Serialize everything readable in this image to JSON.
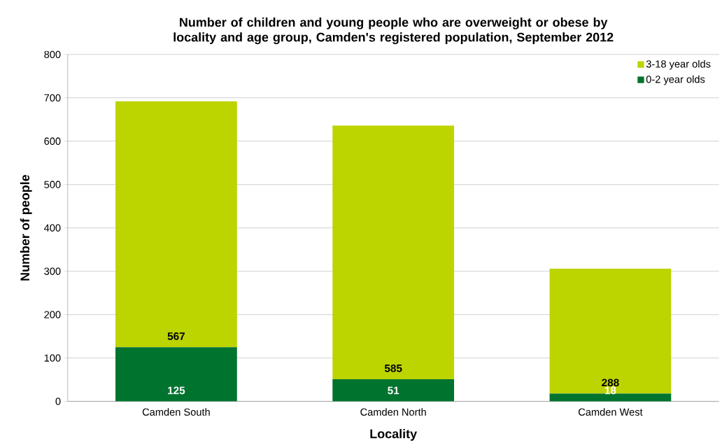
{
  "chart_data": {
    "type": "bar",
    "title": "Number of children and young people who are overweight or obese by locality and age group, Camden's registered population, September 2012",
    "xlabel": "Locality",
    "ylabel": "Number of people",
    "categories": [
      "Camden South",
      "Camden North",
      "Camden West"
    ],
    "series": [
      {
        "name": "0-2 year olds",
        "color": "#00732f",
        "values": [
          125,
          51,
          18
        ]
      },
      {
        "name": "3-18 year olds",
        "color": "#bcd400",
        "values": [
          567,
          585,
          288
        ]
      }
    ],
    "stacked": true,
    "data_labels": true,
    "ylim": [
      0,
      800
    ],
    "yticks": [
      0,
      100,
      200,
      300,
      400,
      500,
      600,
      700,
      800
    ],
    "grid": "y",
    "legend": "top right"
  }
}
